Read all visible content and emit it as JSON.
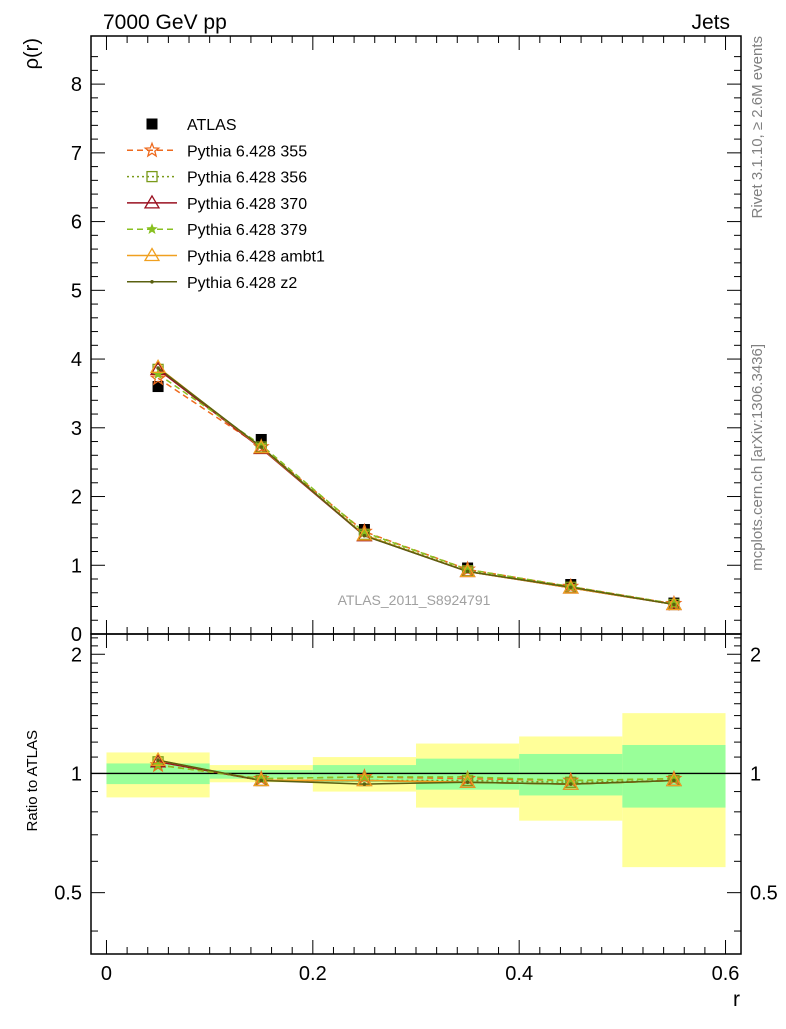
{
  "header": {
    "left_title": "7000 GeV pp",
    "right_title": "Jets"
  },
  "side_labels": {
    "rivet": "Rivet 3.1.10, ≥ 2.6M events",
    "mcplots": "mcplots.cern.ch [arXiv:1306.3436]"
  },
  "analysis_label": "ATLAS_2011_S8924791",
  "colors": {
    "atlas": "#000000",
    "p355": "#ee6a1e",
    "p356": "#7a9a1a",
    "p370": "#9a1020",
    "p379": "#88c020",
    "ambt1": "#f0a020",
    "z2": "#5a6010",
    "band_inner": "#99ff99",
    "band_outer": "#ffff99"
  },
  "chart_data": [
    {
      "type": "line",
      "panel": "main",
      "ylabel": "ρ(r)",
      "ylim": [
        0,
        8.7
      ],
      "yticks": [
        0,
        1,
        2,
        3,
        4,
        5,
        6,
        7,
        8
      ],
      "x": [
        0.05,
        0.15,
        0.25,
        0.35,
        0.45,
        0.55
      ],
      "legend_position": "top-left",
      "series": [
        {
          "key": "atlas",
          "name": "ATLAS",
          "marker": "square",
          "values": [
            3.6,
            2.83,
            1.52,
            0.96,
            0.72,
            0.45
          ]
        },
        {
          "key": "p355",
          "name": "Pythia 6.428 355",
          "marker": "star-open",
          "dash": "dashed",
          "values": [
            3.72,
            2.72,
            1.49,
            0.94,
            0.69,
            0.44
          ]
        },
        {
          "key": "p356",
          "name": "Pythia 6.428 356",
          "marker": "square-open",
          "dash": "dotted",
          "values": [
            3.85,
            2.72,
            1.45,
            0.92,
            0.68,
            0.43
          ]
        },
        {
          "key": "p370",
          "name": "Pythia 6.428 370",
          "marker": "triangle-open",
          "dash": "solid",
          "values": [
            3.85,
            2.7,
            1.43,
            0.91,
            0.67,
            0.43
          ]
        },
        {
          "key": "p379",
          "name": "Pythia 6.428 379",
          "marker": "star",
          "dash": "dashed",
          "values": [
            3.78,
            2.75,
            1.48,
            0.94,
            0.69,
            0.44
          ]
        },
        {
          "key": "ambt1",
          "name": "Pythia 6.428 ambt1",
          "marker": "triangle-open",
          "dash": "solid",
          "values": [
            3.88,
            2.71,
            1.44,
            0.91,
            0.67,
            0.43
          ]
        },
        {
          "key": "z2",
          "name": "Pythia 6.428 z2",
          "marker": "dot",
          "dash": "solid",
          "values": [
            3.87,
            2.72,
            1.43,
            0.91,
            0.68,
            0.43
          ]
        }
      ]
    },
    {
      "type": "line",
      "panel": "ratio",
      "xlabel": "r",
      "ylabel": "Ratio to ATLAS",
      "xlim": [
        -0.015,
        0.615
      ],
      "ylim": [
        0.35,
        2.25
      ],
      "xticks": [
        0,
        0.2,
        0.4,
        0.6
      ],
      "xtick_labels": [
        "0",
        "0.2",
        "0.4",
        "0.6"
      ],
      "yticks": [
        0.5,
        1,
        2
      ],
      "ytick_labels": [
        "0.5",
        "1",
        "2"
      ],
      "bands": {
        "x_low": [
          0.0,
          0.1,
          0.2,
          0.3,
          0.4,
          0.5
        ],
        "x_high": [
          0.1,
          0.2,
          0.3,
          0.4,
          0.5,
          0.6
        ],
        "inner_low": [
          0.94,
          0.97,
          0.95,
          0.91,
          0.88,
          0.82
        ],
        "inner_high": [
          1.06,
          1.02,
          1.05,
          1.09,
          1.12,
          1.18
        ],
        "outer_low": [
          0.87,
          0.95,
          0.9,
          0.82,
          0.76,
          0.58
        ],
        "outer_high": [
          1.13,
          1.05,
          1.1,
          1.19,
          1.24,
          1.42
        ]
      },
      "x": [
        0.05,
        0.15,
        0.25,
        0.35,
        0.45,
        0.55
      ],
      "series": [
        {
          "key": "p355",
          "values": [
            1.05,
            0.97,
            0.98,
            0.97,
            0.96,
            0.97
          ]
        },
        {
          "key": "p356",
          "values": [
            1.07,
            0.96,
            0.96,
            0.96,
            0.95,
            0.96
          ]
        },
        {
          "key": "p370",
          "values": [
            1.07,
            0.96,
            0.96,
            0.95,
            0.94,
            0.96
          ]
        },
        {
          "key": "p379",
          "values": [
            1.05,
            0.97,
            0.98,
            0.98,
            0.96,
            0.97
          ]
        },
        {
          "key": "ambt1",
          "values": [
            1.08,
            0.96,
            0.96,
            0.95,
            0.94,
            0.96
          ]
        },
        {
          "key": "z2",
          "values": [
            1.08,
            0.96,
            0.94,
            0.95,
            0.94,
            0.96
          ]
        }
      ]
    }
  ]
}
